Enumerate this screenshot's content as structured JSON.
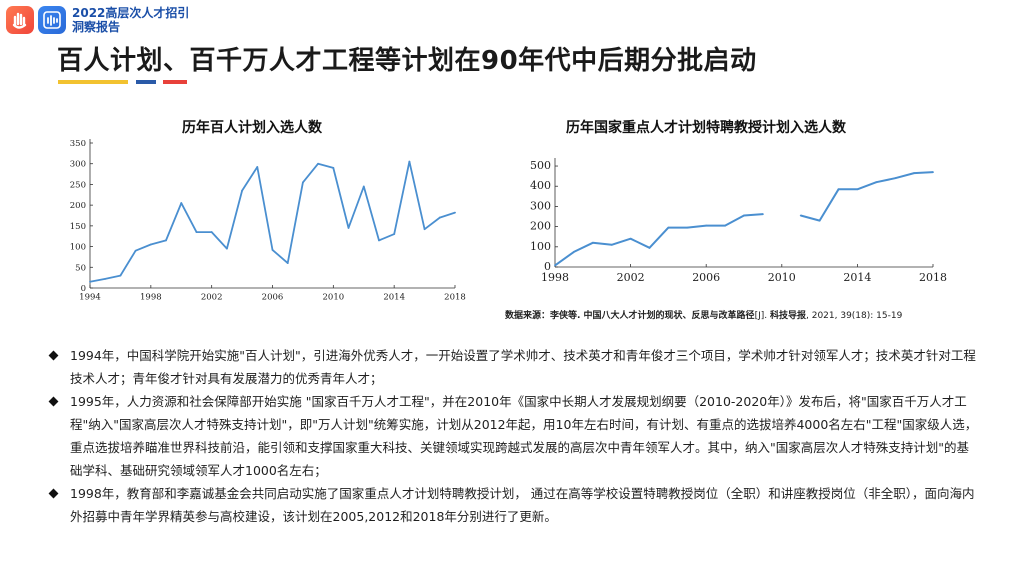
{
  "header": {
    "brand_line1": "2022高层次人才招引",
    "brand_line2": "洞察报告"
  },
  "title": "百人计划、百千万人才工程等计划在90年代中后期分批启动",
  "colors": {
    "accent_yellow": "#f2c230",
    "accent_blue": "#2a5aa8",
    "accent_red": "#e8413a",
    "line": "#4a8fd0"
  },
  "icons": [
    "hand-logo-icon",
    "equalizer-logo-icon"
  ],
  "chart_data": [
    {
      "type": "line",
      "title": "历年百人计划入选人数",
      "xlabel": "",
      "ylabel": "",
      "x": [
        1994,
        1995,
        1996,
        1997,
        1998,
        1999,
        2000,
        2001,
        2002,
        2003,
        2004,
        2005,
        2006,
        2007,
        2008,
        2009,
        2010,
        2011,
        2012,
        2013,
        2014,
        2015,
        2016,
        2017,
        2018
      ],
      "values": [
        15,
        22,
        30,
        90,
        105,
        115,
        205,
        135,
        135,
        95,
        235,
        292,
        92,
        60,
        255,
        300,
        290,
        145,
        245,
        115,
        130,
        305,
        142,
        170,
        182
      ],
      "xticks": [
        1994,
        1998,
        2002,
        2006,
        2010,
        2014,
        2018
      ],
      "yticks": [
        0,
        50,
        100,
        150,
        200,
        250,
        300,
        350
      ],
      "xlim": [
        1994,
        2018
      ],
      "ylim": [
        0,
        350
      ],
      "grid": false
    },
    {
      "type": "line",
      "title": "历年国家重点人才计划特聘教授计划入选人数",
      "xlabel": "",
      "ylabel": "",
      "segments": [
        {
          "x": [
            1998,
            1999,
            2000,
            2001,
            2002,
            2003,
            2004,
            2005,
            2006,
            2007,
            2008,
            2009
          ],
          "values": [
            8,
            75,
            120,
            110,
            140,
            95,
            195,
            195,
            205,
            205,
            255,
            262
          ]
        },
        {
          "x": [
            2011,
            2012,
            2013,
            2014,
            2015,
            2016,
            2017,
            2018
          ],
          "values": [
            255,
            230,
            385,
            385,
            420,
            440,
            465,
            470
          ]
        }
      ],
      "xticks": [
        1998,
        2002,
        2006,
        2010,
        2014,
        2018
      ],
      "yticks": [
        0,
        100,
        200,
        300,
        400,
        500
      ],
      "xlim": [
        1998,
        2018
      ],
      "ylim": [
        0,
        520
      ],
      "grid": false
    }
  ],
  "source": {
    "prefix": "数据来源：李侠等. 中国八大人才计划的现状、反思与改革路径",
    "tag": "[J].",
    "journal": "科技导报",
    "citation": ", 2021, 39(18): 15-19"
  },
  "bullets": [
    "1994年，中国科学院开始实施\"百人计划\"，引进海外优秀人才，一开始设置了学术帅才、技术英才和青年俊才三个项目，学术帅才针对领军人才；技术英才针对工程技术人才；青年俊才针对具有发展潜力的优秀青年人才；",
    "1995年，人力资源和社会保障部开始实施 \"国家百千万人才工程\"，并在2010年《国家中长期人才发展规划纲要（2010-2020年）》发布后，将\"国家百千万人才工程\"纳入\"国家高层次人才特殊支持计划\"，即\"万人计划\"统筹实施，计划从2012年起，用10年左右时间，有计划、有重点的选拔培养4000名左右\"工程\"国家级人选，重点选拔培养瞄准世界科技前沿，能引领和支撑国家重大科技、关键领域实现跨越式发展的高层次中青年领军人才。其中，纳入\"国家高层次人才特殊支持计划\"的基础学科、基础研究领域领军人才1000名左右；",
    "1998年，教育部和李嘉诚基金会共同启动实施了国家重点人才计划特聘教授计划， 通过在高等学校设置特聘教授岗位（全职）和讲座教授岗位（非全职），面向海内外招募中青年学界精英参与高校建设，该计划在2005,2012和2018年分别进行了更新。"
  ]
}
